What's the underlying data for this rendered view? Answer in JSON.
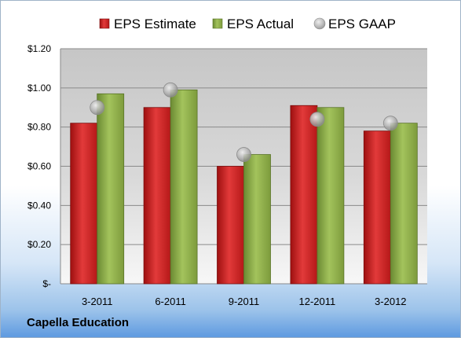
{
  "company": "Capella Education",
  "chart_data": {
    "type": "bar",
    "title": "",
    "xlabel": "",
    "ylabel": "",
    "categories": [
      "3-2011",
      "6-2011",
      "9-2011",
      "12-2011",
      "3-2012"
    ],
    "series": [
      {
        "name": "EPS Estimate",
        "type": "bar",
        "color": "#d01f1f",
        "values": [
          0.82,
          0.9,
          0.6,
          0.91,
          0.78
        ]
      },
      {
        "name": "EPS Actual",
        "type": "bar",
        "color": "#8fb04a",
        "values": [
          0.97,
          0.99,
          0.66,
          0.9,
          0.82
        ]
      },
      {
        "name": "EPS GAAP",
        "type": "scatter",
        "color": "#a8a8a8",
        "values": [
          0.9,
          0.99,
          0.66,
          0.84,
          0.82
        ]
      }
    ],
    "ylim": [
      0,
      1.2
    ],
    "yticks": [
      0,
      0.2,
      0.4,
      0.6,
      0.8,
      1.0,
      1.2
    ],
    "ytick_labels": [
      "$-",
      "$0.20",
      "$0.40",
      "$0.60",
      "$0.80",
      "$1.00",
      "$1.20"
    ],
    "grid": true,
    "legend_position": "top"
  }
}
